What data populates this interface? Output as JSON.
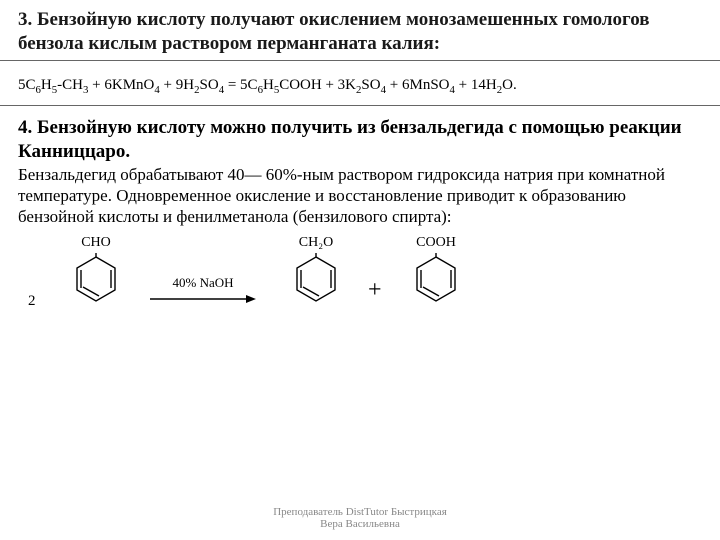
{
  "section3": {
    "title": "3. Бензойную кислоту получают окислением монозамешенных гомологов бензола кислым раствором перманганата калия:",
    "equation_html": "5C<sub>6</sub>H<sub>5</sub>-CH<sub>3</sub> + 6KMnO<sub>4</sub> + 9H<sub>2</sub>SO<sub>4</sub> = 5C<sub>6</sub>H<sub>5</sub>COOH + 3K<sub>2</sub>SO<sub>4</sub> + 6MnSO<sub>4</sub> + 14H<sub>2</sub>O."
  },
  "section4": {
    "title": "4. Бензойную кислоту можно получить из бензальдегида с помощью реакции Канниццаро.",
    "body": "Бензальдегид обрабатывают 40— 60%-ным раствором гидроксида натрия при комнатной температуре. Одновременное окисление и восстановление приводит к образованию бензойной кислоты и фенилметанола (бензилового спирта):",
    "reaction": {
      "coef": "2",
      "mol1_label": "CHO",
      "arrow_label": "40% NaOH",
      "mol2_label": "CH₂O",
      "plus": "+",
      "mol3_label": "COOH"
    }
  },
  "footer": {
    "line1": "Преподаватель DistTutor Быстрицкая",
    "line2": "Вера Васильевна"
  },
  "style": {
    "text_color": "#000000",
    "bg_color": "#ffffff",
    "footer_color": "#888888",
    "border_color": "#666666"
  }
}
